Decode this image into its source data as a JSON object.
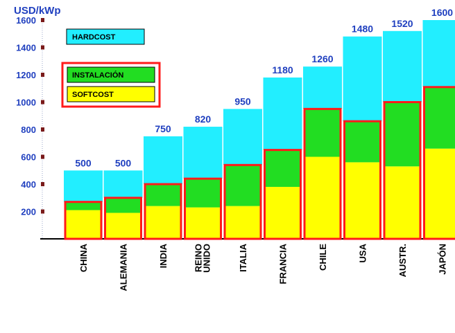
{
  "chart_data": {
    "type": "bar",
    "stacked": true,
    "ylabel": "USD/kWp",
    "ylim": [
      0,
      1600
    ],
    "yticks": [
      200,
      400,
      600,
      800,
      1000,
      1200,
      1400,
      1600
    ],
    "categories": [
      "CHINA",
      "ALEMANIA",
      "INDIA",
      "REINO UNIDO",
      "ITALIA",
      "FRANCIA",
      "CHILE",
      "USA",
      "AUSTR.",
      "JAPÓN"
    ],
    "totals": [
      "500",
      "500",
      "750",
      "820",
      "950",
      "1180",
      "1260",
      "1480",
      "1520",
      "1600"
    ],
    "series": [
      {
        "name": "SOFTCOST",
        "color": "#ffff00",
        "values": [
          210,
          190,
          240,
          230,
          240,
          380,
          600,
          560,
          530,
          660
        ]
      },
      {
        "name": "INSTALACIÓN",
        "color": "#22dd22",
        "values": [
          60,
          110,
          160,
          210,
          300,
          270,
          350,
          300,
          470,
          450
        ]
      },
      {
        "name": "HARDCOST",
        "color": "#22eeff",
        "values": [
          230,
          200,
          350,
          380,
          410,
          530,
          310,
          620,
          520,
          490
        ]
      }
    ],
    "legend": {
      "hardcost": "HARDCOST",
      "instalacion": "INSTALACIÓN",
      "softcost": "SOFTCOST"
    },
    "colors": {
      "outline": "#ff1a1a",
      "axis": "#000000",
      "text": "#1f3fbf",
      "tick_mark": "#7a1a1a"
    },
    "grid": false,
    "legend_placement": "top-left"
  }
}
